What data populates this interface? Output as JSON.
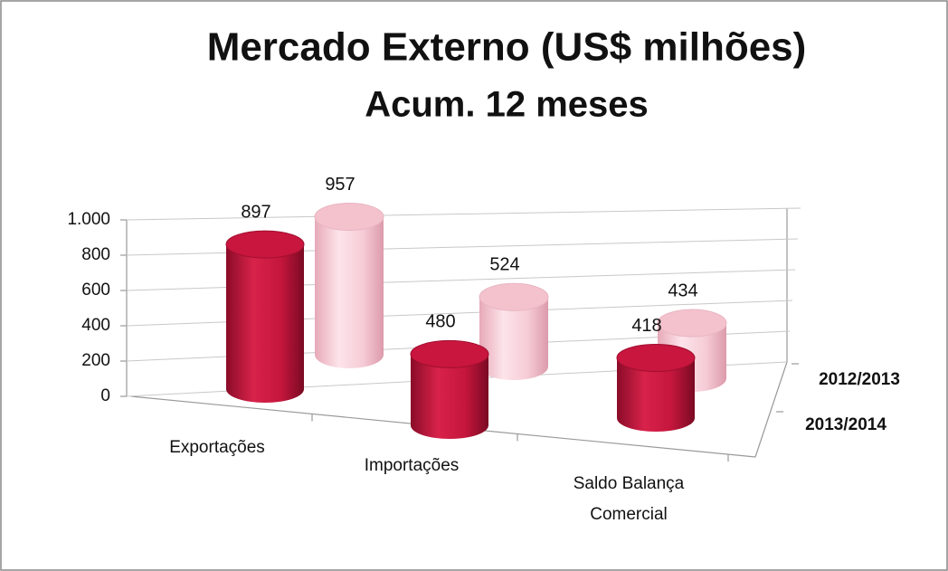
{
  "chart_data": {
    "type": "bar3d",
    "title": "Mercado Externo (US$ milhões)",
    "subtitle": "Acum. 12 meses",
    "categories": [
      "Exportações",
      "Importações",
      "Saldo Balança Comercial"
    ],
    "series": [
      {
        "name": "2012/2013",
        "color": "#f4c2cd",
        "values": [
          957,
          524,
          434
        ]
      },
      {
        "name": "2013/2014",
        "color": "#c8163e",
        "values": [
          897,
          480,
          418
        ]
      }
    ],
    "ylim": [
      0,
      1000
    ],
    "yticks": [
      0,
      200,
      400,
      600,
      800,
      {
        "value": 1000,
        "label": "1.000"
      }
    ],
    "grid": true
  }
}
